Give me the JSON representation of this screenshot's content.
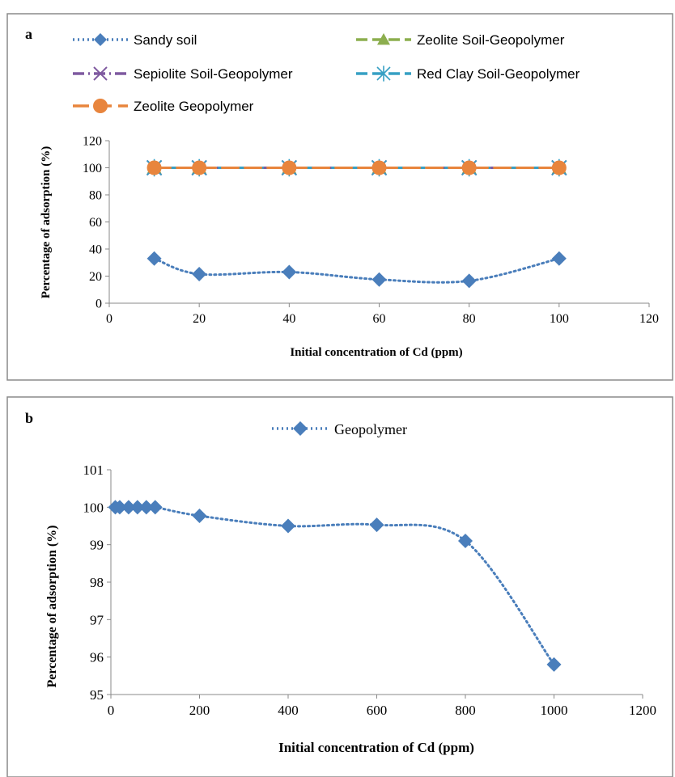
{
  "chart_data": [
    {
      "type": "line",
      "panel_label": "a",
      "xlabel": "Initial concentration of Cd (ppm)",
      "ylabel": "Percentage of adsorption (%)",
      "xlim": [
        0,
        120
      ],
      "ylim": [
        0,
        120
      ],
      "x_ticks": [
        "0",
        "20",
        "40",
        "60",
        "80",
        "100",
        "120"
      ],
      "y_ticks": [
        "0",
        "20",
        "40",
        "60",
        "80",
        "100",
        "120"
      ],
      "grid": false,
      "legend_position": "top",
      "x": [
        10,
        20,
        40,
        60,
        80,
        100
      ],
      "series": [
        {
          "name": "Sandy soil",
          "values": [
            33,
            21.5,
            23,
            17.5,
            16.5,
            33
          ],
          "color": "#4a7ebb",
          "marker": "diamond",
          "line": "dotted"
        },
        {
          "name": "Zeolite Soil-Geopolymer",
          "values": [
            100,
            100,
            100,
            100,
            100,
            100
          ],
          "color": "#8cae4e",
          "marker": "triangle",
          "line": "dashed"
        },
        {
          "name": "Sepiolite Soil-Geopolymer",
          "values": [
            100,
            100,
            100,
            100,
            100,
            100
          ],
          "color": "#7f5aa0",
          "marker": "x",
          "line": "dashdot"
        },
        {
          "name": "Red Clay Soil-Geopolymer",
          "values": [
            100,
            100,
            100,
            100,
            100,
            100
          ],
          "color": "#37a0c4",
          "marker": "asterisk",
          "line": "dashed"
        },
        {
          "name": "Zeolite Geopolymer",
          "values": [
            100,
            100,
            100,
            100,
            100,
            100
          ],
          "color": "#e8853d",
          "marker": "circle",
          "line": "longdash"
        }
      ]
    },
    {
      "type": "line",
      "panel_label": "b",
      "xlabel": "Initial concentration of Cd (ppm)",
      "ylabel": "Percentage of adsorption (%)",
      "xlim": [
        0,
        1200
      ],
      "ylim": [
        95,
        101
      ],
      "x_ticks": [
        "0",
        "200",
        "400",
        "600",
        "800",
        "1000",
        "1200"
      ],
      "y_ticks": [
        "95",
        "96",
        "97",
        "98",
        "99",
        "100",
        "101"
      ],
      "grid": false,
      "legend_position": "top",
      "x": [
        10,
        20,
        40,
        60,
        80,
        100,
        200,
        400,
        600,
        800,
        1000
      ],
      "series": [
        {
          "name": "Geopolymer",
          "values": [
            100,
            100,
            100,
            100,
            100,
            100,
            99.77,
            99.5,
            99.53,
            99.1,
            95.8
          ],
          "color": "#4a7ebb",
          "marker": "diamond",
          "line": "dotted"
        }
      ]
    }
  ]
}
